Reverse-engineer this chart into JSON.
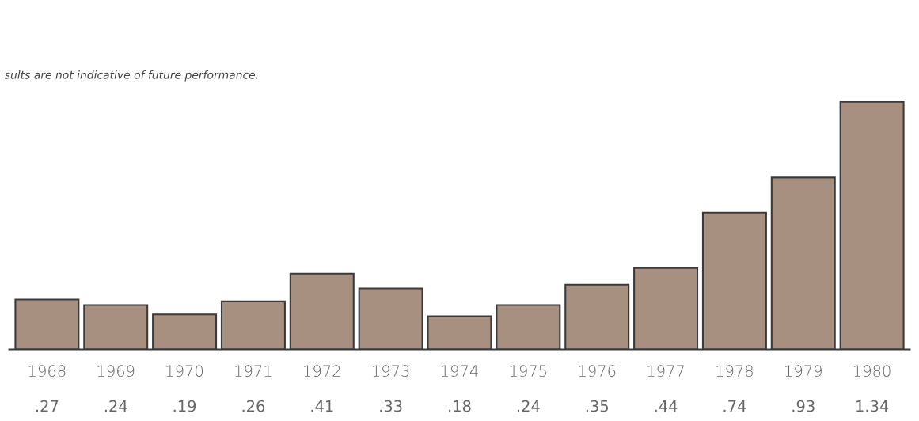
{
  "chart_data": {
    "type": "bar",
    "categories": [
      "1968",
      "1969",
      "1970",
      "1971",
      "1972",
      "1973",
      "1974",
      "1975",
      "1976",
      "1977",
      "1978",
      "1979",
      "1980"
    ],
    "values": [
      0.27,
      0.24,
      0.19,
      0.26,
      0.41,
      0.33,
      0.18,
      0.24,
      0.35,
      0.44,
      0.74,
      0.93,
      1.34
    ],
    "value_labels": [
      ".27",
      ".24",
      ".19",
      ".26",
      ".41",
      ".33",
      ".18",
      ".24",
      ".35",
      ".44",
      ".74",
      ".93",
      "1.34"
    ],
    "color": "#a89080",
    "annotations": [
      "sults are not indicative of future performance."
    ],
    "grid": false,
    "legend": false
  }
}
